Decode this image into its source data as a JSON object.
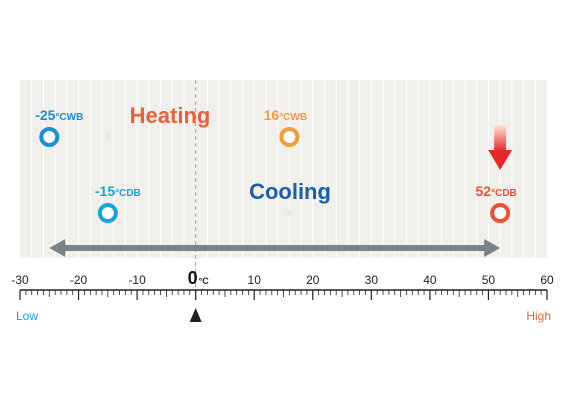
{
  "chart_data": {
    "type": "range",
    "xlim": [
      -30,
      60
    ],
    "x_ticks": [
      "-30",
      "-20",
      "-10",
      "0",
      "10",
      "20",
      "30",
      "40",
      "50",
      "60"
    ],
    "x_unit": "°C",
    "scale_low_label": "Low",
    "scale_high_label": "High",
    "series": [
      {
        "name": "Heating",
        "min": -25,
        "max": 16,
        "marker": -15,
        "min_label": "-25",
        "min_unit": "°CWB",
        "max_label": "16",
        "max_unit": "°CWB",
        "color_start": "#1a8fd8",
        "color_end": "#f39a3c"
      },
      {
        "name": "Cooling",
        "min": -15,
        "max": 52,
        "marker": 16,
        "min_label": "-15",
        "min_unit": "°CDB",
        "max_label": "52",
        "max_unit": "°CDB",
        "color_start": "#1aa3dc",
        "color_end": "#e8523a"
      }
    ],
    "range_arrow": {
      "from": -25,
      "to": 52
    },
    "highlight_arrow_at": 52,
    "grid": true
  },
  "colors": {
    "background_panel": "#f1efec",
    "grid_line": "#ffffff",
    "heating_title": "#e8603c",
    "cooling_title": "#1a5fa8",
    "range_arrow": "#7a8389",
    "low_label": "#1aa0d8",
    "high_label": "#e8643a",
    "red_arrow": "#e42a2a"
  }
}
